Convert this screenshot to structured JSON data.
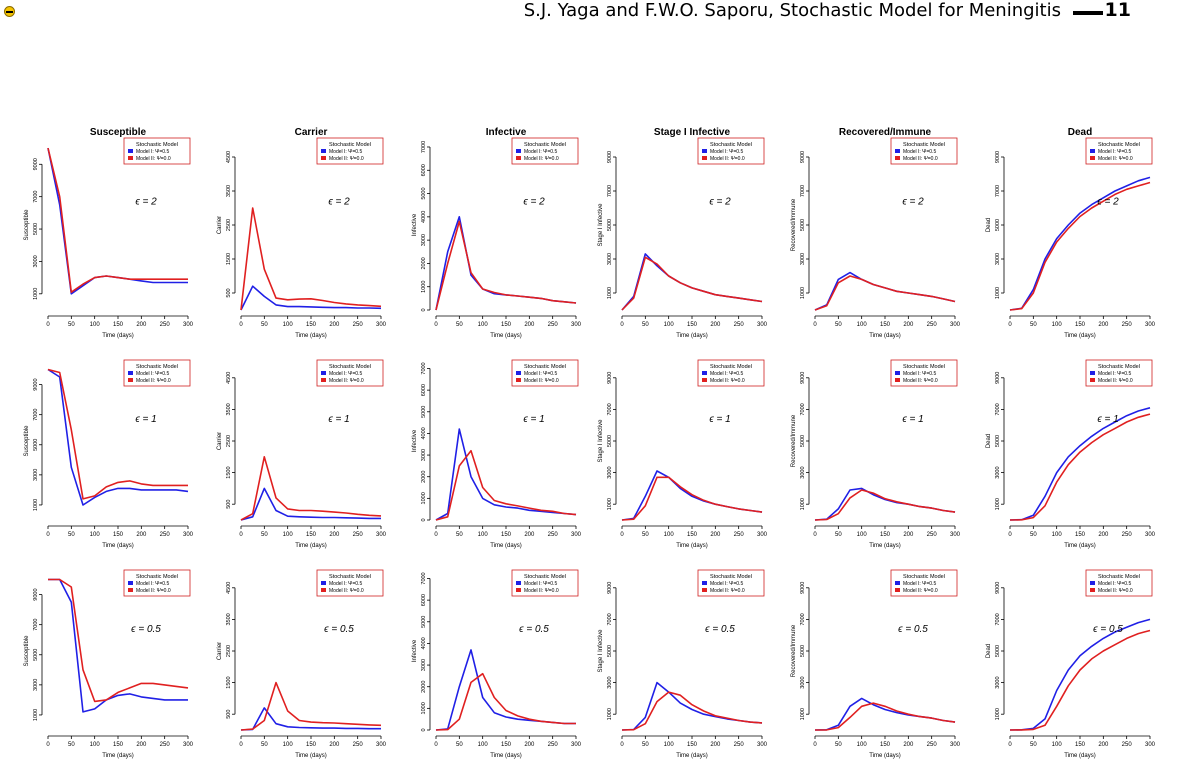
{
  "header": {
    "running_title": "S.J. Yaga and F.W.O. Saporu, Stochastic Model for Meningitis",
    "page_number": "11"
  },
  "legend": {
    "title": "Stochastic Model",
    "entries": [
      "Model I: Ψ=0.5",
      "Model II: Ψ=0.0"
    ]
  },
  "colors": {
    "model_I": "#2020e6",
    "model_II": "#e02020"
  },
  "rows": [
    {
      "epsilon_label": "ϵ = 2"
    },
    {
      "epsilon_label": "ϵ = 1"
    },
    {
      "epsilon_label": "ϵ = 0.5"
    }
  ],
  "columns": [
    {
      "title": "Susceptible",
      "ylabel": "Susceptible",
      "yticks": [
        1000,
        3000,
        5000,
        7000,
        9000
      ],
      "ylim": [
        0,
        10500
      ]
    },
    {
      "title": "Carrier",
      "ylabel": "Carrier",
      "yticks": [
        500,
        1500,
        2500,
        3500,
        4500
      ],
      "ylim": [
        0,
        5000
      ]
    },
    {
      "title": "Infective",
      "ylabel": "Infective",
      "yticks": [
        0,
        1000,
        2000,
        3000,
        4000,
        5000,
        6000,
        7000
      ],
      "ylim": [
        0,
        7300
      ]
    },
    {
      "title": "Stage I Infective",
      "ylabel": "Stage I Infective",
      "yticks": [
        1000,
        3000,
        5000,
        7000,
        9000
      ],
      "ylim": [
        0,
        10000
      ]
    },
    {
      "title": "Recovered/Immune",
      "ylabel": "Recovered/Immune",
      "yticks": [
        1000,
        3000,
        5000,
        7000,
        9000
      ],
      "ylim": [
        0,
        10000
      ]
    },
    {
      "title": "Dead",
      "ylabel": "Dead",
      "yticks": [
        1000,
        3000,
        5000,
        7000,
        9000
      ],
      "ylim": [
        0,
        10000
      ]
    }
  ],
  "chart_data": {
    "type": "line",
    "xlabel": "Time (days)",
    "xticks": [
      0,
      50,
      100,
      150,
      200,
      250,
      300
    ],
    "xlim": [
      0,
      300
    ],
    "x": [
      0,
      25,
      50,
      75,
      100,
      125,
      150,
      175,
      200,
      225,
      250,
      275,
      300
    ],
    "panels": [
      {
        "row": 0,
        "col": 0,
        "series": [
          {
            "name": "Model I: Ψ=0.5",
            "values": [
              10000,
              6500,
              1000,
              1500,
              2000,
              2100,
              2000,
              1900,
              1800,
              1700,
              1700,
              1700,
              1700
            ]
          },
          {
            "name": "Model II: Ψ=0.0",
            "values": [
              10000,
              7000,
              1100,
              1600,
              2000,
              2100,
              2000,
              1900,
              1900,
              1900,
              1900,
              1900,
              1900
            ]
          }
        ]
      },
      {
        "row": 0,
        "col": 1,
        "series": [
          {
            "name": "Model I: Ψ=0.5",
            "values": [
              0,
              700,
              400,
              150,
              100,
              100,
              90,
              80,
              70,
              70,
              60,
              60,
              50
            ]
          },
          {
            "name": "Model II: Ψ=0.0",
            "values": [
              0,
              3000,
              1200,
              350,
              300,
              320,
              330,
              280,
              220,
              180,
              150,
              130,
              110
            ]
          }
        ]
      },
      {
        "row": 0,
        "col": 2,
        "series": [
          {
            "name": "Model I: Ψ=0.5",
            "values": [
              0,
              2500,
              4000,
              1500,
              900,
              700,
              650,
              600,
              550,
              500,
              400,
              350,
              300
            ]
          },
          {
            "name": "Model II: Ψ=0.0",
            "values": [
              0,
              2000,
              3800,
              1600,
              900,
              750,
              650,
              600,
              550,
              500,
              400,
              350,
              300
            ]
          }
        ]
      },
      {
        "row": 0,
        "col": 3,
        "series": [
          {
            "name": "Model I: Ψ=0.5",
            "values": [
              0,
              800,
              3300,
              2600,
              2000,
              1600,
              1300,
              1100,
              900,
              800,
              700,
              600,
              500
            ]
          },
          {
            "name": "Model II: Ψ=0.0",
            "values": [
              0,
              700,
              3100,
              2700,
              2000,
              1600,
              1300,
              1100,
              900,
              800,
              700,
              600,
              500
            ]
          }
        ]
      },
      {
        "row": 0,
        "col": 4,
        "series": [
          {
            "name": "Model I: Ψ=0.5",
            "values": [
              0,
              300,
              1800,
              2200,
              1800,
              1500,
              1300,
              1100,
              1000,
              900,
              800,
              650,
              500
            ]
          },
          {
            "name": "Model II: Ψ=0.0",
            "values": [
              0,
              250,
              1600,
              2000,
              1800,
              1500,
              1300,
              1100,
              1000,
              900,
              800,
              650,
              500
            ]
          }
        ]
      },
      {
        "row": 0,
        "col": 5,
        "series": [
          {
            "name": "Model I: Ψ=0.5",
            "values": [
              0,
              100,
              1200,
              3000,
              4200,
              5000,
              5700,
              6200,
              6600,
              7000,
              7300,
              7600,
              7800
            ]
          },
          {
            "name": "Model II: Ψ=0.0",
            "values": [
              0,
              80,
              1000,
              2800,
              4000,
              4800,
              5500,
              6000,
              6400,
              6800,
              7100,
              7300,
              7500
            ]
          }
        ]
      },
      {
        "row": 1,
        "col": 0,
        "series": [
          {
            "name": "Model I: Ψ=0.5",
            "values": [
              10000,
              9500,
              3500,
              1000,
              1500,
              1900,
              2100,
              2100,
              2000,
              2000,
              2000,
              2000,
              1900
            ]
          },
          {
            "name": "Model II: Ψ=0.0",
            "values": [
              10000,
              9800,
              6000,
              1400,
              1600,
              2200,
              2500,
              2600,
              2400,
              2300,
              2300,
              2300,
              2300
            ]
          }
        ]
      },
      {
        "row": 1,
        "col": 1,
        "series": [
          {
            "name": "Model I: Ψ=0.5",
            "values": [
              0,
              100,
              1000,
              300,
              120,
              100,
              90,
              80,
              80,
              70,
              60,
              50,
              50
            ]
          },
          {
            "name": "Model II: Ψ=0.0",
            "values": [
              0,
              200,
              2000,
              700,
              350,
              300,
              300,
              280,
              250,
              220,
              180,
              150,
              130
            ]
          }
        ]
      },
      {
        "row": 1,
        "col": 2,
        "series": [
          {
            "name": "Model I: Ψ=0.5",
            "values": [
              0,
              300,
              4200,
              2000,
              1000,
              700,
              600,
              550,
              450,
              400,
              350,
              300,
              250
            ]
          },
          {
            "name": "Model II: Ψ=0.0",
            "values": [
              0,
              150,
              2500,
              3200,
              1500,
              900,
              750,
              650,
              550,
              450,
              400,
              300,
              250
            ]
          }
        ]
      },
      {
        "row": 1,
        "col": 3,
        "series": [
          {
            "name": "Model I: Ψ=0.5",
            "values": [
              0,
              100,
              1500,
              3100,
              2700,
              2000,
              1500,
              1200,
              1000,
              850,
              700,
              600,
              500
            ]
          },
          {
            "name": "Model II: Ψ=0.0",
            "values": [
              0,
              50,
              900,
              2700,
              2700,
              2100,
              1600,
              1250,
              1000,
              850,
              700,
              600,
              500
            ]
          }
        ]
      },
      {
        "row": 1,
        "col": 4,
        "series": [
          {
            "name": "Model I: Ψ=0.5",
            "values": [
              0,
              50,
              700,
              1900,
              2000,
              1600,
              1300,
              1100,
              1000,
              850,
              750,
              600,
              500
            ]
          },
          {
            "name": "Model II: Ψ=0.0",
            "values": [
              0,
              30,
              400,
              1400,
              1900,
              1700,
              1350,
              1150,
              1000,
              850,
              750,
              600,
              500
            ]
          }
        ]
      },
      {
        "row": 1,
        "col": 5,
        "series": [
          {
            "name": "Model I: Ψ=0.5",
            "values": [
              0,
              20,
              300,
              1500,
              3000,
              4000,
              4700,
              5300,
              5800,
              6200,
              6600,
              6900,
              7100
            ]
          },
          {
            "name": "Model II: Ψ=0.0",
            "values": [
              0,
              10,
              150,
              900,
              2400,
              3500,
              4300,
              4900,
              5400,
              5800,
              6200,
              6500,
              6700
            ]
          }
        ]
      },
      {
        "row": 2,
        "col": 0,
        "series": [
          {
            "name": "Model I: Ψ=0.5",
            "values": [
              10000,
              10000,
              8500,
              1200,
              1400,
              2000,
              2300,
              2400,
              2200,
              2100,
              2000,
              2000,
              2000
            ]
          },
          {
            "name": "Model II: Ψ=0.0",
            "values": [
              10000,
              10000,
              9500,
              4000,
              1900,
              2000,
              2500,
              2800,
              3100,
              3100,
              3000,
              2900,
              2800
            ]
          }
        ]
      },
      {
        "row": 2,
        "col": 1,
        "series": [
          {
            "name": "Model I: Ψ=0.5",
            "values": [
              0,
              20,
              700,
              200,
              100,
              80,
              70,
              60,
              60,
              50,
              50,
              40,
              40
            ]
          },
          {
            "name": "Model II: Ψ=0.0",
            "values": [
              0,
              30,
              300,
              1500,
              600,
              300,
              250,
              230,
              220,
              200,
              180,
              160,
              150
            ]
          }
        ]
      },
      {
        "row": 2,
        "col": 2,
        "series": [
          {
            "name": "Model I: Ψ=0.5",
            "values": [
              0,
              50,
              2000,
              3700,
              1500,
              800,
              600,
              500,
              450,
              400,
              350,
              300,
              300
            ]
          },
          {
            "name": "Model II: Ψ=0.0",
            "values": [
              0,
              20,
              500,
              2200,
              2600,
              1500,
              900,
              650,
              500,
              400,
              350,
              300,
              300
            ]
          }
        ]
      },
      {
        "row": 2,
        "col": 3,
        "series": [
          {
            "name": "Model I: Ψ=0.5",
            "values": [
              0,
              30,
              800,
              3000,
              2400,
              1700,
              1300,
              1000,
              850,
              700,
              600,
              500,
              450
            ]
          },
          {
            "name": "Model II: Ψ=0.0",
            "values": [
              0,
              20,
              400,
              1800,
              2400,
              2200,
              1600,
              1200,
              900,
              750,
              600,
              500,
              450
            ]
          }
        ]
      },
      {
        "row": 2,
        "col": 4,
        "series": [
          {
            "name": "Model I: Ψ=0.5",
            "values": [
              0,
              10,
              300,
              1500,
              2000,
              1600,
              1300,
              1100,
              950,
              850,
              750,
              600,
              500
            ]
          },
          {
            "name": "Model II: Ψ=0.0",
            "values": [
              0,
              5,
              150,
              800,
              1500,
              1700,
              1500,
              1200,
              1000,
              850,
              750,
              600,
              500
            ]
          }
        ]
      },
      {
        "row": 2,
        "col": 5,
        "series": [
          {
            "name": "Model I: Ψ=0.5",
            "values": [
              0,
              10,
              100,
              700,
              2500,
              3800,
              4700,
              5300,
              5800,
              6200,
              6500,
              6800,
              7000
            ]
          },
          {
            "name": "Model II: Ψ=0.0",
            "values": [
              0,
              5,
              40,
              300,
              1500,
              2800,
              3800,
              4500,
              5000,
              5400,
              5800,
              6100,
              6300
            ]
          }
        ]
      }
    ]
  }
}
